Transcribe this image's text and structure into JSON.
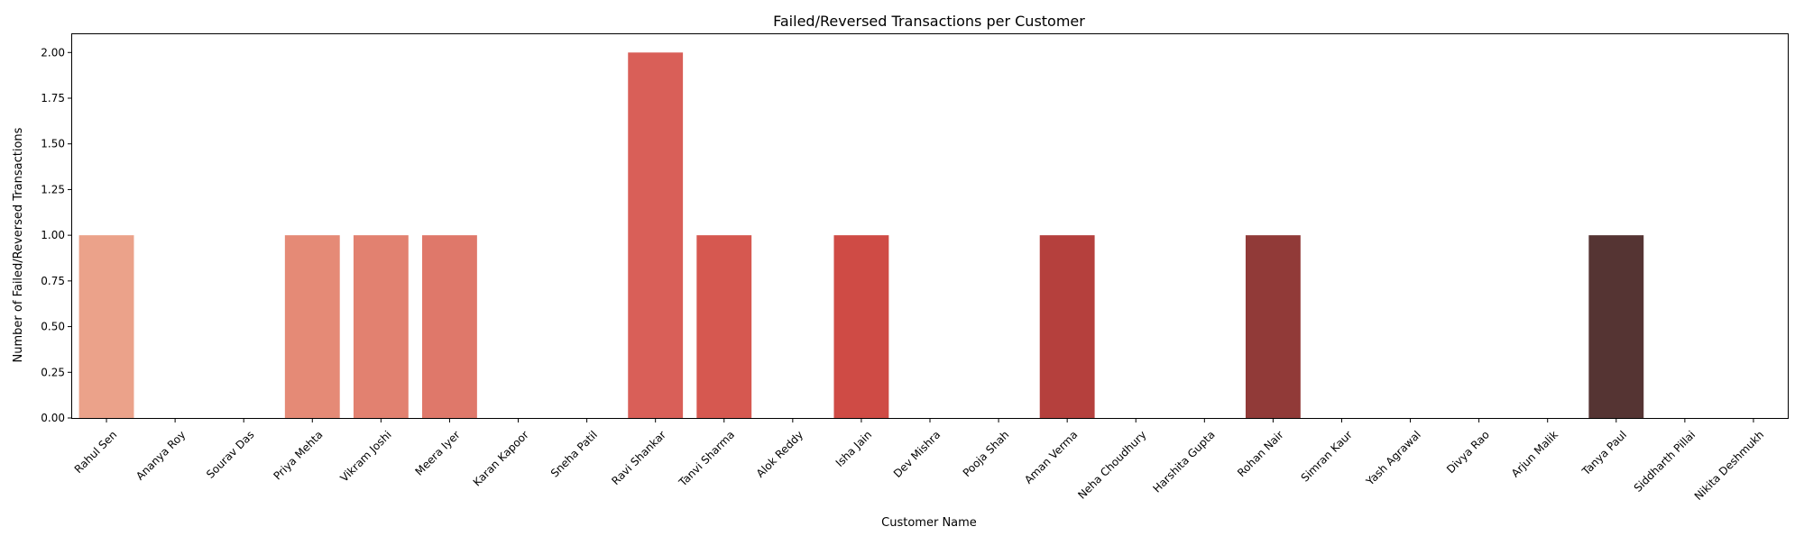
{
  "chart_data": {
    "type": "bar",
    "title": "Failed/Reversed Transactions per Customer",
    "xlabel": "Customer Name",
    "ylabel": "Number of Failed/Reversed Transactions",
    "ylim": [
      0,
      2.1
    ],
    "yticks": [
      "0.00",
      "0.25",
      "0.50",
      "0.75",
      "1.00",
      "1.25",
      "1.50",
      "1.75",
      "2.00"
    ],
    "grid": false,
    "legend": "none",
    "categories": [
      "Rahul Sen",
      "Ananya Roy",
      "Sourav Das",
      "Priya Mehta",
      "Vikram Joshi",
      "Meera Iyer",
      "Karan Kapoor",
      "Sneha Patil",
      "Ravi Shankar",
      "Tanvi Sharma",
      "Alok Reddy",
      "Isha Jain",
      "Dev Mishra",
      "Pooja Shah",
      "Aman Verma",
      "Neha Choudhury",
      "Harshita Gupta",
      "Rohan Nair",
      "Simran Kaur",
      "Yash Agrawal",
      "Divya Rao",
      "Arjun Malik",
      "Tanya Paul",
      "Siddharth Pillai",
      "Nikita Deshmukh"
    ],
    "values": [
      1,
      0,
      0,
      1,
      1,
      1,
      0,
      0,
      2,
      1,
      0,
      1,
      0,
      0,
      1,
      0,
      0,
      1,
      0,
      0,
      0,
      0,
      1,
      0,
      0
    ],
    "colors": [
      "#eba28a",
      "#e99880",
      "#e7907a",
      "#e58a76",
      "#e28170",
      "#df786a",
      "#dd6f66",
      "#db6760",
      "#d95f58",
      "#d65850",
      "#d4514b",
      "#cf4b45",
      "#c84642",
      "#be423f",
      "#b5403d",
      "#aa3d3b",
      "#9f3b3a",
      "#913a38",
      "#833936",
      "#773734",
      "#6c3633",
      "#603533",
      "#553433",
      "#4d3232",
      "#453131"
    ]
  }
}
